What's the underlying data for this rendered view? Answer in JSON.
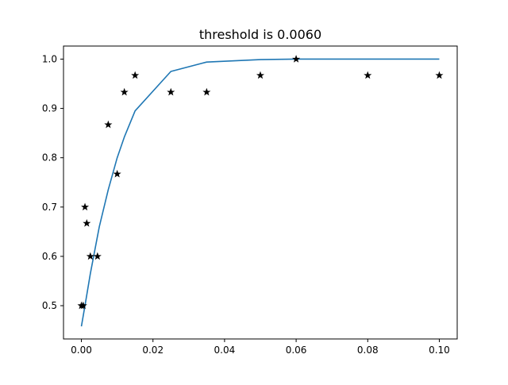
{
  "chart_data": {
    "type": "line",
    "title": "threshold is 0.0060",
    "xlabel": "",
    "ylabel": "",
    "xlim": [
      -0.005,
      0.105
    ],
    "ylim": [
      0.4325,
      1.0265
    ],
    "xticks": [
      0.0,
      0.02,
      0.04,
      0.06,
      0.08,
      0.1
    ],
    "xtick_labels": [
      "0.00",
      "0.02",
      "0.04",
      "0.06",
      "0.08",
      "0.10"
    ],
    "yticks": [
      0.5,
      0.6,
      0.7,
      0.8,
      0.9,
      1.0
    ],
    "ytick_labels": [
      "0.5",
      "0.6",
      "0.7",
      "0.8",
      "0.9",
      "1.0"
    ],
    "grid": false,
    "series": [
      {
        "type": "line",
        "color": "#1f77b4",
        "x": [
          0.0,
          0.001,
          0.0025,
          0.005,
          0.0075,
          0.01,
          0.012,
          0.015,
          0.025,
          0.035,
          0.05,
          0.06,
          0.08,
          0.1
        ],
        "y": [
          0.458,
          0.5,
          0.565,
          0.66,
          0.735,
          0.8,
          0.842,
          0.895,
          0.975,
          0.994,
          0.999,
          1.0,
          1.0,
          1.0
        ]
      },
      {
        "type": "scatter",
        "marker": "star",
        "color": "#000000",
        "x": [
          0.0,
          0.0005,
          0.001,
          0.0015,
          0.0025,
          0.0045,
          0.0075,
          0.01,
          0.012,
          0.015,
          0.025,
          0.035,
          0.05,
          0.06,
          0.08,
          0.1
        ],
        "y": [
          0.5,
          0.5,
          0.7,
          0.667,
          0.6,
          0.6,
          0.867,
          0.767,
          0.933,
          0.967,
          0.933,
          0.933,
          0.967,
          1.0,
          0.967,
          0.967
        ]
      }
    ]
  }
}
